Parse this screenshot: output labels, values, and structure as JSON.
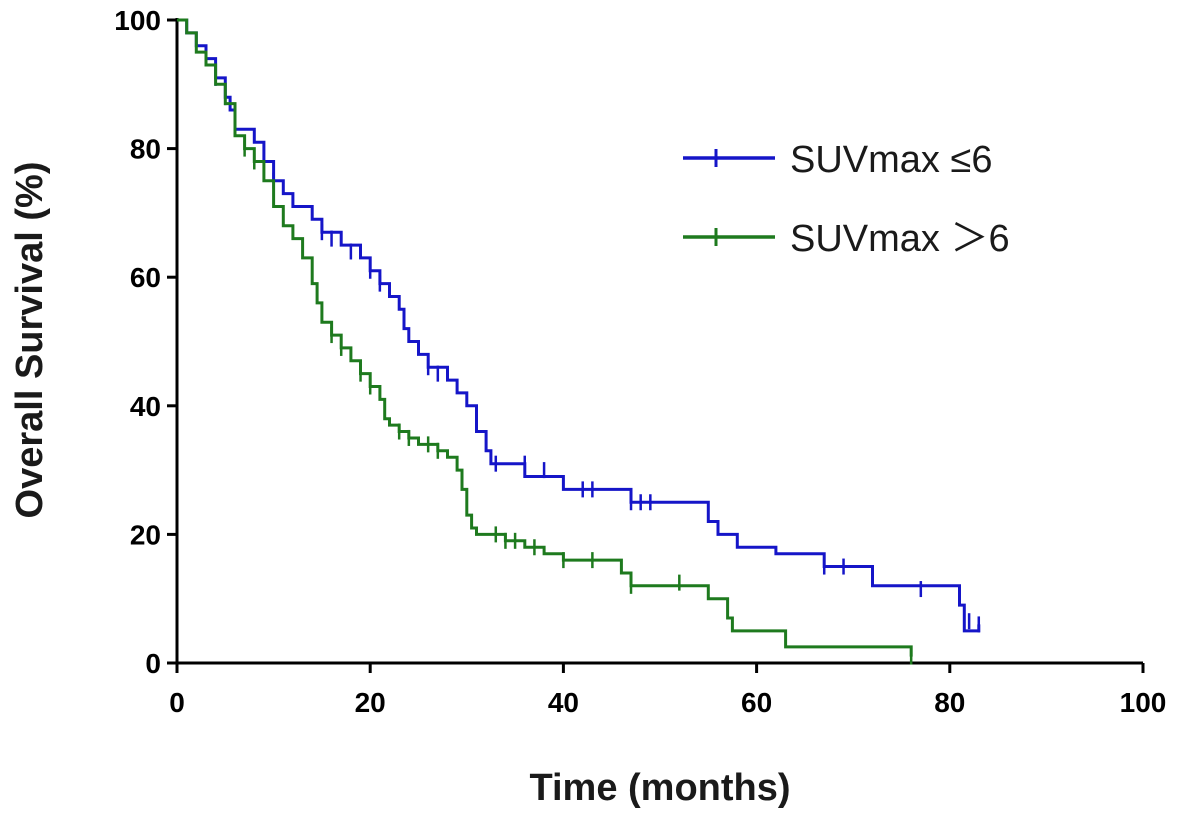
{
  "chart_data": {
    "type": "line",
    "subtype": "kaplan-meier",
    "title": "",
    "xlabel": "Time (months)",
    "ylabel": "Overall Survival (%)",
    "xlim": [
      0,
      100
    ],
    "ylim": [
      0,
      100
    ],
    "xticks": [
      "0",
      "20",
      "40",
      "60",
      "80",
      "100"
    ],
    "yticks": [
      "0",
      "20",
      "40",
      "60",
      "80",
      "100"
    ],
    "grid": false,
    "legend_position": "top-right",
    "series": [
      {
        "name": "SUVmax ≤6",
        "color": "#1515c8",
        "steps": [
          [
            0,
            100
          ],
          [
            1,
            98
          ],
          [
            2,
            96
          ],
          [
            3,
            94
          ],
          [
            4,
            91
          ],
          [
            5,
            88
          ],
          [
            5.5,
            86
          ],
          [
            6,
            83
          ],
          [
            8,
            81
          ],
          [
            9,
            78
          ],
          [
            10,
            75
          ],
          [
            11,
            73
          ],
          [
            12,
            71
          ],
          [
            14,
            69
          ],
          [
            15,
            67
          ],
          [
            17,
            65
          ],
          [
            19,
            63
          ],
          [
            20,
            61
          ],
          [
            21,
            59
          ],
          [
            22,
            57
          ],
          [
            23,
            55
          ],
          [
            23.5,
            52
          ],
          [
            24,
            50
          ],
          [
            25,
            48
          ],
          [
            26,
            46
          ],
          [
            28,
            44
          ],
          [
            29,
            42
          ],
          [
            30,
            40
          ],
          [
            31,
            36
          ],
          [
            32,
            33
          ],
          [
            32.5,
            31
          ],
          [
            36,
            29
          ],
          [
            40,
            27
          ],
          [
            47,
            25
          ],
          [
            55,
            22
          ],
          [
            56,
            20
          ],
          [
            58,
            18
          ],
          [
            62,
            17
          ],
          [
            67,
            15
          ],
          [
            72,
            12
          ],
          [
            81,
            9
          ],
          [
            81.5,
            5
          ],
          [
            83,
            6
          ]
        ],
        "censors": [
          [
            4,
            91
          ],
          [
            5,
            88
          ],
          [
            10,
            75
          ],
          [
            15,
            67
          ],
          [
            16,
            66
          ],
          [
            18,
            64
          ],
          [
            20,
            61
          ],
          [
            21,
            59
          ],
          [
            26,
            46
          ],
          [
            27,
            45
          ],
          [
            33,
            31
          ],
          [
            36,
            31
          ],
          [
            38,
            30
          ],
          [
            42,
            27
          ],
          [
            43,
            27
          ],
          [
            47,
            25
          ],
          [
            48,
            25
          ],
          [
            49,
            25
          ],
          [
            67,
            15
          ],
          [
            69,
            15
          ],
          [
            77,
            11.5
          ],
          [
            82,
            6.5
          ],
          [
            83,
            6
          ]
        ]
      },
      {
        "name": "SUVmax ＞6",
        "color": "#1e7a1e",
        "steps": [
          [
            0,
            100
          ],
          [
            1,
            98
          ],
          [
            2,
            95
          ],
          [
            3,
            93
          ],
          [
            4,
            90
          ],
          [
            5,
            87
          ],
          [
            6,
            82
          ],
          [
            7,
            80
          ],
          [
            8,
            78
          ],
          [
            9,
            75
          ],
          [
            10,
            71
          ],
          [
            11,
            68
          ],
          [
            12,
            66
          ],
          [
            13,
            63
          ],
          [
            14,
            59
          ],
          [
            14.5,
            56
          ],
          [
            15,
            53
          ],
          [
            16,
            51
          ],
          [
            17,
            49
          ],
          [
            18,
            47
          ],
          [
            19,
            45
          ],
          [
            20,
            43
          ],
          [
            21,
            41
          ],
          [
            21.5,
            38
          ],
          [
            22,
            37
          ],
          [
            23,
            36
          ],
          [
            24,
            35
          ],
          [
            25,
            34
          ],
          [
            27,
            33
          ],
          [
            28,
            32
          ],
          [
            29,
            30
          ],
          [
            29.5,
            27
          ],
          [
            30,
            23
          ],
          [
            30.5,
            21
          ],
          [
            31,
            20
          ],
          [
            34,
            19
          ],
          [
            36,
            18
          ],
          [
            38,
            17
          ],
          [
            40,
            16
          ],
          [
            46,
            14
          ],
          [
            47,
            12
          ],
          [
            55,
            10
          ],
          [
            57,
            7
          ],
          [
            57.5,
            5
          ],
          [
            63,
            2.5
          ],
          [
            76,
            1
          ]
        ],
        "censors": [
          [
            7,
            80
          ],
          [
            8,
            78
          ],
          [
            16,
            51
          ],
          [
            17,
            49
          ],
          [
            19,
            45
          ],
          [
            20,
            43
          ],
          [
            23,
            36
          ],
          [
            24,
            35
          ],
          [
            26,
            34
          ],
          [
            27,
            33
          ],
          [
            33,
            20
          ],
          [
            34,
            19
          ],
          [
            35,
            19
          ],
          [
            37,
            18
          ],
          [
            40,
            16
          ],
          [
            43,
            16
          ],
          [
            47,
            12
          ],
          [
            52,
            12.5
          ],
          [
            76,
            1
          ]
        ]
      }
    ]
  }
}
